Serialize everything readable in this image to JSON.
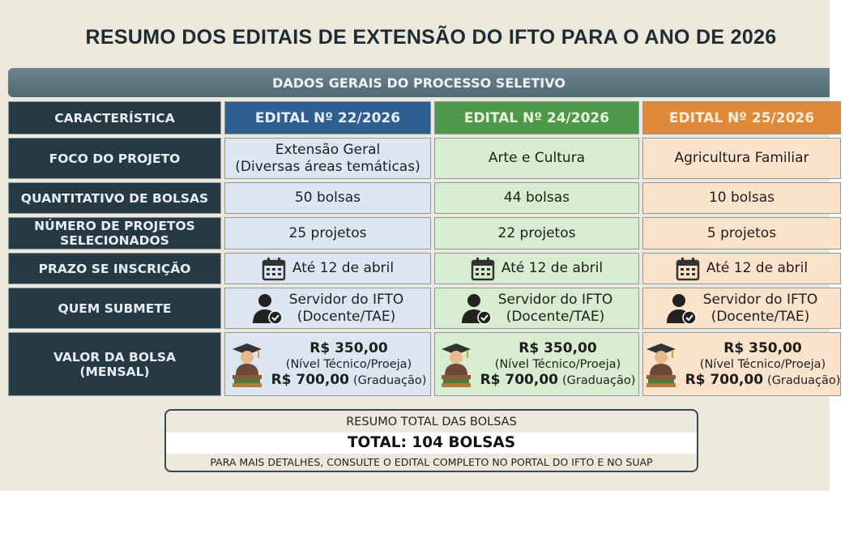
{
  "title": "RESUMO DOS EDITAIS DE EXTENSÃO DO IFTO PARA O ANO DE 2026",
  "section_title": "DADOS GERAIS DO PROCESSO SELETIVO",
  "table": {
    "header": [
      "CARACTERÍSTICA",
      "EDITAL Nº 22/2026",
      "EDITAL Nº 24/2026",
      "EDITAL Nº 25/2026"
    ],
    "rows": [
      {
        "label": [
          "FOCO DO PROJETO"
        ],
        "cells": [
          [
            "Extensão Geral",
            "(Diversas áreas temáticas)"
          ],
          [
            "Arte e Cultura"
          ],
          [
            "Agricultura Familiar"
          ]
        ]
      },
      {
        "label": [
          "QUANTITATIVO DE BOLSAS"
        ],
        "cells": [
          [
            "50 bolsas"
          ],
          [
            "44 bolsas"
          ],
          [
            "10 bolsas"
          ]
        ]
      },
      {
        "label": [
          "NÚMERO DE PROJETOS",
          "SELECIONADOS"
        ],
        "cells": [
          [
            "25 projetos"
          ],
          [
            "22 projetos"
          ],
          [
            "5 projetos"
          ]
        ]
      },
      {
        "label": [
          "PRAZO SE INSCRIÇÃO"
        ],
        "cells": [
          [
            "Até 12 de abril"
          ],
          [
            "Até 12 de abril"
          ],
          [
            "Até 12 de abril"
          ]
        ]
      },
      {
        "label": [
          "QUEM SUBMETE"
        ],
        "cells": [
          [
            "Servidor do IFTO",
            "(Docente/TAE)"
          ],
          [
            "Servidor do IFTO",
            "(Docente/TAE)"
          ],
          [
            "Servidor do IFTO",
            "(Docente/TAE)"
          ]
        ]
      },
      {
        "label": [
          "VALOR DA BOLSA",
          "(MENSAL)"
        ],
        "cells": [
          {
            "value_1": "R$ 350,00",
            "level_1": "(Nível Técnico/Proeja)",
            "value_2": "R$ 700,00",
            "level_2": "(Graduação)"
          },
          {
            "value_1": "R$ 350,00",
            "level_1": "(Nível Técnico/Proeja)",
            "value_2": "R$ 700,00",
            "level_2": "(Graduação)"
          },
          {
            "value_1": "R$ 350,00",
            "level_1": "(Nível Técnico/Proeja)",
            "value_2": "R$ 700,00",
            "level_2": "(Graduação)"
          }
        ]
      }
    ]
  },
  "summary": {
    "title": "RESUMO TOTAL DAS BOLSAS",
    "total": "TOTAL: 104 BOLSAS",
    "note": "PARA MAIS DETALHES, CONSULTE O EDITAL COMPLETO NO PORTAL DO IFTO E NO SUAP"
  }
}
